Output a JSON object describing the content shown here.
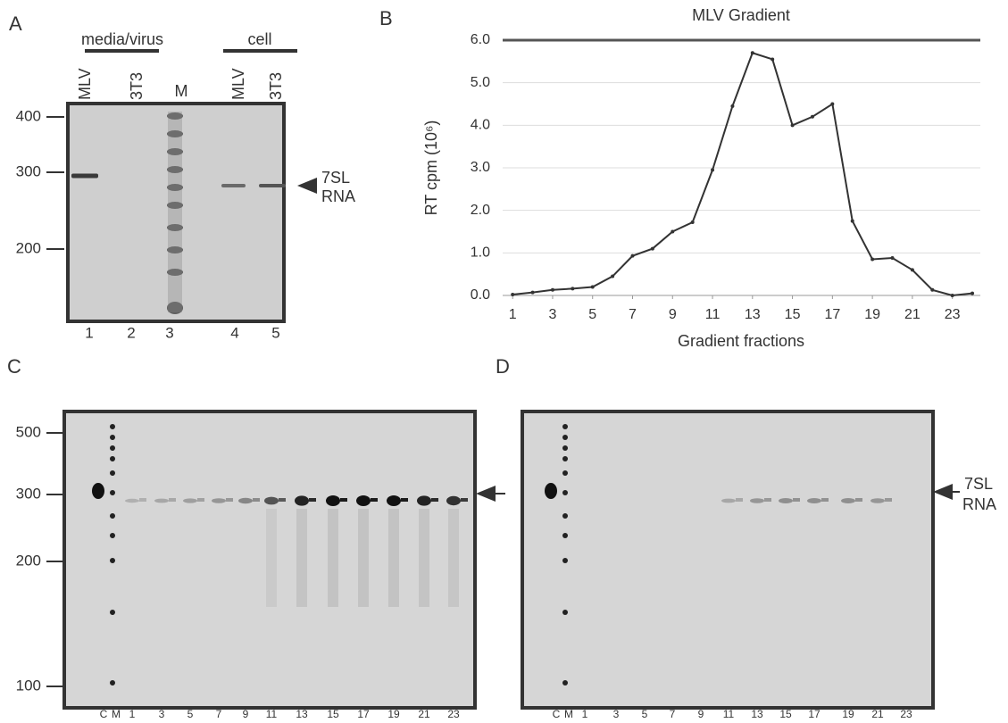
{
  "panel_labels": [
    "A",
    "B",
    "C",
    "D"
  ],
  "panel_a": {
    "groups": [
      "media/virus",
      "cell"
    ],
    "lanes": [
      "MLV",
      "3T3",
      "M",
      "MLV",
      "3T3"
    ],
    "lane_numbers": [
      "1",
      "2",
      "3",
      "4",
      "5"
    ],
    "size_markers": [
      "400",
      "300",
      "200"
    ],
    "band_label": [
      "7SL",
      "RNA"
    ]
  },
  "chart_data": {
    "type": "line",
    "title": "MLV Gradient",
    "y_label": "RT cpm (10⁶)",
    "x_label": "Gradient fractions",
    "x": [
      1,
      2,
      3,
      4,
      5,
      6,
      7,
      8,
      9,
      10,
      11,
      12,
      13,
      14,
      15,
      16,
      17,
      18,
      19,
      20,
      21,
      22,
      23,
      24
    ],
    "values": [
      0.02,
      0.07,
      0.13,
      0.16,
      0.2,
      0.45,
      0.93,
      1.1,
      1.5,
      1.72,
      2.95,
      4.45,
      5.7,
      5.55,
      4.0,
      4.2,
      4.5,
      1.75,
      0.85,
      0.88,
      0.6,
      0.13,
      0.0,
      0.05
    ],
    "color": "#333333",
    "xlim": [
      0.5,
      24.4
    ],
    "ylim": [
      0,
      6
    ],
    "xticks": [
      1,
      3,
      5,
      7,
      9,
      11,
      13,
      15,
      17,
      19,
      21,
      23
    ],
    "yticks": [
      {
        "value": 0,
        "label": "0.0"
      },
      {
        "value": 1,
        "label": "1.0"
      },
      {
        "value": 2,
        "label": "2.0"
      },
      {
        "value": 3,
        "label": "3.0"
      },
      {
        "value": 4,
        "label": "4.0"
      },
      {
        "value": 5,
        "label": "5.0"
      },
      {
        "value": 6,
        "label": "6.0"
      }
    ],
    "grid": true
  },
  "panel_c": {
    "lanes": [
      "C",
      "M",
      "1",
      "3",
      "5",
      "7",
      "9",
      "11",
      "13",
      "15",
      "17",
      "19",
      "21",
      "23"
    ],
    "size_markers": [
      "500",
      "300",
      "200",
      "100"
    ]
  },
  "panel_d": {
    "lanes": [
      "C",
      "M",
      "1",
      "3",
      "5",
      "7",
      "9",
      "11",
      "13",
      "15",
      "17",
      "19",
      "21",
      "23"
    ],
    "band_label": [
      "7SL",
      "RNA"
    ]
  }
}
